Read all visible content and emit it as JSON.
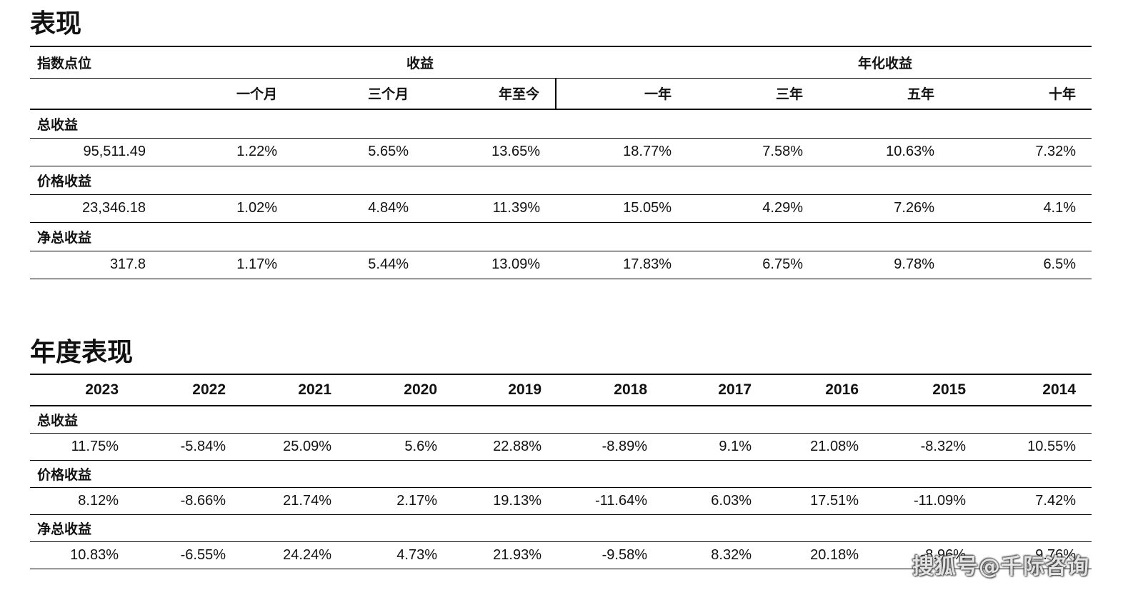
{
  "performance": {
    "title": "表现",
    "header": {
      "index_level": "指数点位",
      "returns": "收益",
      "annualized": "年化收益",
      "periods": [
        "一个月",
        "三个月",
        "年至今",
        "一年",
        "三年",
        "五年",
        "十年"
      ]
    },
    "rows": [
      {
        "label": "总收益",
        "level": "95,511.49",
        "values": [
          "1.22%",
          "5.65%",
          "13.65%",
          "18.77%",
          "7.58%",
          "10.63%",
          "7.32%"
        ]
      },
      {
        "label": "价格收益",
        "level": "23,346.18",
        "values": [
          "1.02%",
          "4.84%",
          "11.39%",
          "15.05%",
          "4.29%",
          "7.26%",
          "4.1%"
        ]
      },
      {
        "label": "净总收益",
        "level": "317.8",
        "values": [
          "1.17%",
          "5.44%",
          "13.09%",
          "17.83%",
          "6.75%",
          "9.78%",
          "6.5%"
        ]
      }
    ]
  },
  "annual": {
    "title": "年度表现",
    "years": [
      "2023",
      "2022",
      "2021",
      "2020",
      "2019",
      "2018",
      "2017",
      "2016",
      "2015",
      "2014"
    ],
    "rows": [
      {
        "label": "总收益",
        "values": [
          "11.75%",
          "-5.84%",
          "25.09%",
          "5.6%",
          "22.88%",
          "-8.89%",
          "9.1%",
          "21.08%",
          "-8.32%",
          "10.55%"
        ]
      },
      {
        "label": "价格收益",
        "values": [
          "8.12%",
          "-8.66%",
          "21.74%",
          "2.17%",
          "19.13%",
          "-11.64%",
          "6.03%",
          "17.51%",
          "-11.09%",
          "7.42%"
        ]
      },
      {
        "label": "净总收益",
        "values": [
          "10.83%",
          "-6.55%",
          "24.24%",
          "4.73%",
          "21.93%",
          "-9.58%",
          "8.32%",
          "20.18%",
          "-8.96%",
          "9.76%"
        ]
      }
    ]
  },
  "watermark": "搜狐号@千际咨询"
}
